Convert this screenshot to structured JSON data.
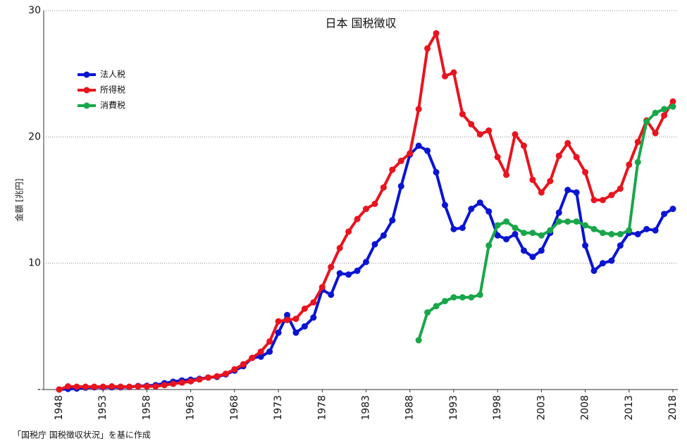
{
  "chart_data": {
    "type": "line",
    "title": "日本 国税徴収",
    "y_label": "金額 [兆円]",
    "source": "「国税庁 国税徴収状況」を基に作成",
    "x": [
      1948,
      1949,
      1950,
      1951,
      1952,
      1953,
      1954,
      1955,
      1956,
      1957,
      1958,
      1959,
      1960,
      1961,
      1962,
      1963,
      1964,
      1965,
      1966,
      1967,
      1968,
      1969,
      1970,
      1971,
      1972,
      1973,
      1974,
      1975,
      1976,
      1977,
      1978,
      1979,
      1980,
      1981,
      1982,
      1983,
      1984,
      1985,
      1986,
      1987,
      1988,
      1989,
      1990,
      1991,
      1992,
      1993,
      1994,
      1995,
      1996,
      1997,
      1998,
      1999,
      2000,
      2001,
      2002,
      2003,
      2004,
      2005,
      2006,
      2007,
      2008,
      2009,
      2010,
      2011,
      2012,
      2013,
      2014,
      2015,
      2016,
      2017,
      2018
    ],
    "xlim": [
      1948,
      2018
    ],
    "xticks": [
      1948,
      1953,
      1958,
      1963,
      1968,
      1973,
      1978,
      1983,
      1988,
      1993,
      1998,
      2003,
      2008,
      2013,
      2018
    ],
    "ylim": [
      0,
      30
    ],
    "yticks": [
      {
        "value": 0,
        "label": "-"
      },
      10,
      20,
      30
    ],
    "grid": true,
    "legend": "upper left",
    "series": [
      {
        "name": "法人税",
        "color": "#0a14d2",
        "values": [
          0,
          0.05,
          0.08,
          0.15,
          0.18,
          0.18,
          0.18,
          0.18,
          0.2,
          0.28,
          0.3,
          0.35,
          0.5,
          0.62,
          0.72,
          0.78,
          0.85,
          0.95,
          1.0,
          1.2,
          1.5,
          1.85,
          2.5,
          2.6,
          3.0,
          4.5,
          5.9,
          4.5,
          5.0,
          5.7,
          7.9,
          7.5,
          9.2,
          9.1,
          9.4,
          10.1,
          11.5,
          12.2,
          13.4,
          16.1,
          18.6,
          19.3,
          18.9,
          17.2,
          14.6,
          12.7,
          12.8,
          14.3,
          14.8,
          14.1,
          12.2,
          11.9,
          12.3,
          11.0,
          10.5,
          11.0,
          12.4,
          14.0,
          15.8,
          15.6,
          11.4,
          9.4,
          10.0,
          10.2,
          11.4,
          12.4,
          12.3,
          12.7,
          12.6,
          13.9,
          14.3
        ]
      },
      {
        "name": "所得税",
        "color": "#e8141e",
        "values": [
          0,
          0.25,
          0.22,
          0.22,
          0.22,
          0.22,
          0.25,
          0.22,
          0.22,
          0.25,
          0.25,
          0.25,
          0.35,
          0.45,
          0.55,
          0.65,
          0.8,
          0.95,
          1.05,
          1.25,
          1.6,
          2.0,
          2.5,
          3.0,
          3.8,
          5.4,
          5.5,
          5.6,
          6.4,
          6.9,
          8.1,
          9.7,
          11.2,
          12.5,
          13.5,
          14.3,
          14.7,
          16.0,
          17.4,
          18.1,
          18.7,
          22.2,
          27.0,
          28.2,
          24.8,
          25.1,
          21.8,
          21.0,
          20.2,
          20.5,
          18.4,
          17.0,
          20.2,
          19.3,
          16.6,
          15.6,
          16.5,
          18.5,
          19.5,
          18.4,
          17.2,
          15.0,
          15.0,
          15.4,
          15.9,
          17.8,
          19.6,
          21.3,
          20.3,
          21.7,
          22.8
        ]
      },
      {
        "name": "消費税",
        "color": "#19a64a",
        "values": [
          null,
          null,
          null,
          null,
          null,
          null,
          null,
          null,
          null,
          null,
          null,
          null,
          null,
          null,
          null,
          null,
          null,
          null,
          null,
          null,
          null,
          null,
          null,
          null,
          null,
          null,
          null,
          null,
          null,
          null,
          null,
          null,
          null,
          null,
          null,
          null,
          null,
          null,
          null,
          null,
          null,
          3.9,
          6.1,
          6.6,
          7.0,
          7.3,
          7.3,
          7.3,
          7.5,
          11.4,
          13.0,
          13.3,
          12.8,
          12.4,
          12.4,
          12.2,
          12.6,
          13.3,
          13.3,
          13.3,
          13.0,
          12.7,
          12.4,
          12.3,
          12.3,
          12.6,
          18.0,
          21.2,
          21.9,
          22.2,
          22.4
        ]
      }
    ]
  }
}
